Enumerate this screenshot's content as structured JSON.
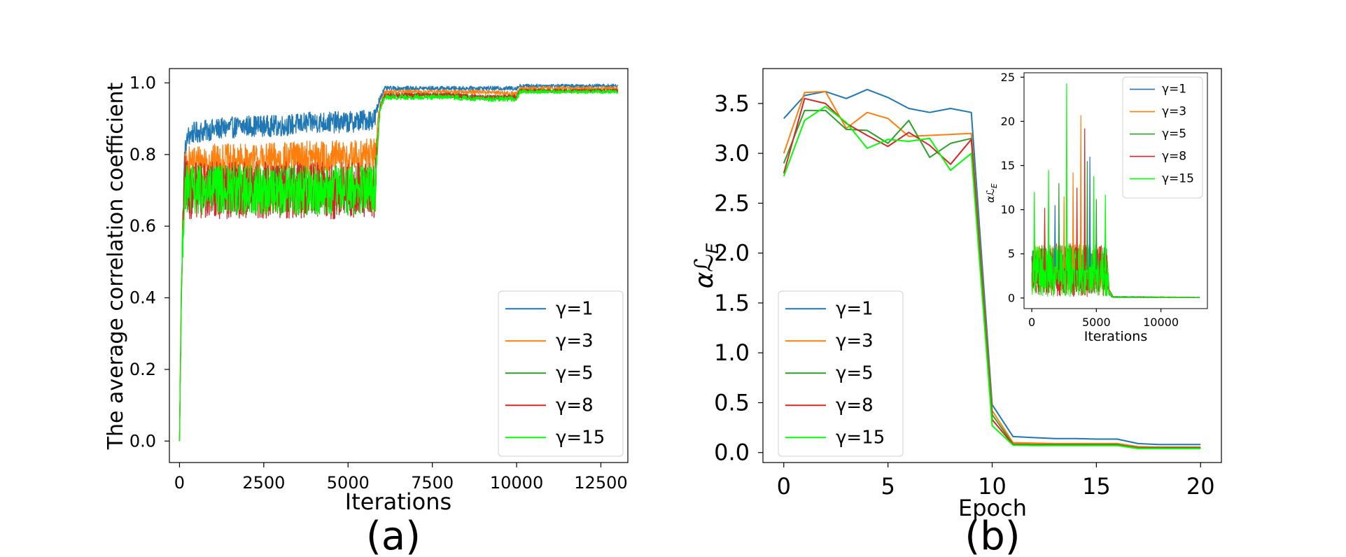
{
  "chart_data": [
    {
      "panel": "a",
      "type": "line",
      "caption": "(a)",
      "xlabel": "Iterations",
      "ylabel": "The average correlation coefficient",
      "xlim": [
        -300,
        13300
      ],
      "ylim": [
        -0.06,
        1.04
      ],
      "xticks": [
        0,
        2500,
        5000,
        7500,
        10000,
        12500
      ],
      "yticks": [
        0.0,
        0.2,
        0.4,
        0.6,
        0.8,
        1.0
      ],
      "ytick_labels": [
        "0.0",
        "0.2",
        "0.4",
        "0.6",
        "0.8",
        "1.0"
      ],
      "legend_position": "lower-right",
      "noise_series": true,
      "series": [
        {
          "name": "γ=1",
          "color": "#1f77b4",
          "x": [
            0,
            60,
            150,
            250,
            400,
            1000,
            2000,
            3000,
            4000,
            5000,
            5800,
            5850,
            5950,
            6100,
            7000,
            8000,
            9000,
            9900,
            10000,
            10100,
            11000,
            12000,
            13000
          ],
          "y": [
            0.0,
            0.45,
            0.8,
            0.85,
            0.86,
            0.87,
            0.88,
            0.88,
            0.89,
            0.89,
            0.9,
            0.92,
            0.96,
            0.985,
            0.985,
            0.985,
            0.985,
            0.985,
            0.985,
            0.992,
            0.992,
            0.992,
            0.992
          ],
          "amp": [
            0,
            0.05,
            0.03,
            0.03,
            0.03,
            0.03,
            0.03,
            0.03,
            0.03,
            0.03,
            0.03,
            0.02,
            0.01,
            0.006,
            0.006,
            0.006,
            0.006,
            0.006,
            0.006,
            0.005,
            0.005,
            0.005,
            0.005
          ]
        },
        {
          "name": "γ=3",
          "color": "#ff7f0e",
          "x": [
            0,
            60,
            150,
            250,
            400,
            1000,
            2000,
            3000,
            4000,
            5000,
            5800,
            5850,
            5950,
            6100,
            7000,
            8000,
            9000,
            9900,
            10000,
            10100,
            11000,
            12000,
            13000
          ],
          "y": [
            0.0,
            0.45,
            0.76,
            0.77,
            0.78,
            0.78,
            0.78,
            0.785,
            0.79,
            0.79,
            0.8,
            0.85,
            0.94,
            0.975,
            0.975,
            0.975,
            0.975,
            0.97,
            0.97,
            0.985,
            0.985,
            0.985,
            0.985
          ],
          "amp": [
            0,
            0.06,
            0.05,
            0.05,
            0.05,
            0.05,
            0.05,
            0.05,
            0.05,
            0.05,
            0.05,
            0.03,
            0.01,
            0.006,
            0.006,
            0.006,
            0.006,
            0.006,
            0.006,
            0.005,
            0.005,
            0.005,
            0.005
          ]
        },
        {
          "name": "γ=5",
          "color": "#2ca02c",
          "x": [
            0,
            60,
            150,
            250,
            400,
            1000,
            2000,
            3000,
            4000,
            5000,
            5800,
            5850,
            5950,
            6100,
            7000,
            8000,
            9000,
            9900,
            10000,
            10100,
            11000,
            12000,
            13000
          ],
          "y": [
            0.0,
            0.45,
            0.72,
            0.71,
            0.7,
            0.7,
            0.7,
            0.7,
            0.7,
            0.7,
            0.7,
            0.8,
            0.93,
            0.965,
            0.965,
            0.965,
            0.96,
            0.96,
            0.96,
            0.978,
            0.978,
            0.978,
            0.978
          ],
          "amp": [
            0,
            0.06,
            0.07,
            0.07,
            0.07,
            0.07,
            0.07,
            0.07,
            0.07,
            0.07,
            0.07,
            0.03,
            0.01,
            0.007,
            0.007,
            0.007,
            0.007,
            0.007,
            0.007,
            0.005,
            0.005,
            0.005,
            0.005
          ]
        },
        {
          "name": "γ=8",
          "color": "#d62728",
          "x": [
            0,
            60,
            150,
            250,
            400,
            1000,
            2000,
            3000,
            4000,
            5000,
            5800,
            5850,
            5950,
            6100,
            7000,
            8000,
            9000,
            9900,
            10000,
            10100,
            11000,
            12000,
            13000
          ],
          "y": [
            0.0,
            0.45,
            0.72,
            0.7,
            0.7,
            0.7,
            0.7,
            0.7,
            0.7,
            0.7,
            0.7,
            0.8,
            0.93,
            0.965,
            0.965,
            0.965,
            0.96,
            0.96,
            0.96,
            0.978,
            0.978,
            0.978,
            0.978
          ],
          "amp": [
            0,
            0.06,
            0.08,
            0.08,
            0.08,
            0.08,
            0.08,
            0.08,
            0.08,
            0.08,
            0.08,
            0.03,
            0.01,
            0.007,
            0.007,
            0.007,
            0.007,
            0.007,
            0.007,
            0.005,
            0.005,
            0.005,
            0.005
          ]
        },
        {
          "name": "γ=15",
          "color": "#00ff00",
          "x": [
            0,
            60,
            150,
            250,
            400,
            1000,
            2000,
            3000,
            4000,
            5000,
            5800,
            5850,
            5950,
            6100,
            7000,
            8000,
            9000,
            9900,
            10000,
            10100,
            11000,
            12000,
            13000
          ],
          "y": [
            0.0,
            0.45,
            0.71,
            0.7,
            0.7,
            0.7,
            0.7,
            0.7,
            0.7,
            0.7,
            0.7,
            0.8,
            0.93,
            0.96,
            0.96,
            0.96,
            0.955,
            0.955,
            0.955,
            0.975,
            0.975,
            0.975,
            0.975
          ],
          "amp": [
            0,
            0.06,
            0.07,
            0.07,
            0.07,
            0.07,
            0.07,
            0.07,
            0.07,
            0.07,
            0.07,
            0.03,
            0.01,
            0.007,
            0.007,
            0.007,
            0.007,
            0.007,
            0.007,
            0.005,
            0.005,
            0.005,
            0.005
          ]
        }
      ]
    },
    {
      "panel": "b",
      "type": "line",
      "caption": "(b)",
      "xlabel": "Epoch",
      "ylabel": "αℒ",
      "ylabel_subscript": "E",
      "xlim": [
        -1,
        21
      ],
      "ylim": [
        -0.1,
        3.85
      ],
      "xticks": [
        0,
        5,
        10,
        15,
        20
      ],
      "yticks": [
        0.0,
        0.5,
        1.0,
        1.5,
        2.0,
        2.5,
        3.0,
        3.5
      ],
      "ytick_labels": [
        "0.0",
        "0.5",
        "1.0",
        "1.5",
        "2.0",
        "2.5",
        "3.0",
        "3.5"
      ],
      "legend_position": "lower-left",
      "series": [
        {
          "name": "γ=1",
          "color": "#1f77b4",
          "x": [
            0,
            1,
            2,
            3,
            4,
            5,
            6,
            7,
            8,
            9,
            10,
            11,
            12,
            13,
            14,
            15,
            16,
            17,
            18,
            19,
            20
          ],
          "y": [
            3.35,
            3.58,
            3.62,
            3.55,
            3.64,
            3.56,
            3.45,
            3.41,
            3.45,
            3.41,
            0.48,
            0.16,
            0.15,
            0.14,
            0.14,
            0.135,
            0.135,
            0.09,
            0.08,
            0.08,
            0.08
          ]
        },
        {
          "name": "γ=3",
          "color": "#ff7f0e",
          "x": [
            0,
            1,
            2,
            3,
            4,
            5,
            6,
            7,
            8,
            9,
            10,
            11,
            12,
            13,
            14,
            15,
            16,
            17,
            18,
            19,
            20
          ],
          "y": [
            3.0,
            3.61,
            3.62,
            3.25,
            3.41,
            3.35,
            3.17,
            3.18,
            3.19,
            3.2,
            0.42,
            0.1,
            0.095,
            0.09,
            0.09,
            0.09,
            0.09,
            0.06,
            0.055,
            0.055,
            0.055
          ]
        },
        {
          "name": "γ=5",
          "color": "#2ca02c",
          "x": [
            0,
            1,
            2,
            3,
            4,
            5,
            6,
            7,
            8,
            9,
            10,
            11,
            12,
            13,
            14,
            15,
            16,
            17,
            18,
            19,
            20
          ],
          "y": [
            2.9,
            3.43,
            3.43,
            3.24,
            3.23,
            3.1,
            3.33,
            2.96,
            3.1,
            3.15,
            0.38,
            0.085,
            0.08,
            0.08,
            0.08,
            0.08,
            0.08,
            0.05,
            0.05,
            0.05,
            0.05
          ]
        },
        {
          "name": "γ=8",
          "color": "#d62728",
          "x": [
            0,
            1,
            2,
            3,
            4,
            5,
            6,
            7,
            8,
            9,
            10,
            11,
            12,
            13,
            14,
            15,
            16,
            17,
            18,
            19,
            20
          ],
          "y": [
            2.8,
            3.55,
            3.5,
            3.3,
            3.18,
            3.07,
            3.21,
            3.08,
            2.89,
            3.14,
            0.33,
            0.08,
            0.075,
            0.075,
            0.075,
            0.075,
            0.075,
            0.045,
            0.045,
            0.045,
            0.045
          ]
        },
        {
          "name": "γ=15",
          "color": "#00ff00",
          "x": [
            0,
            1,
            2,
            3,
            4,
            5,
            6,
            7,
            8,
            9,
            10,
            11,
            12,
            13,
            14,
            15,
            16,
            17,
            18,
            19,
            20
          ],
          "y": [
            2.77,
            3.33,
            3.47,
            3.31,
            3.05,
            3.14,
            3.12,
            3.15,
            2.83,
            3.0,
            0.27,
            0.075,
            0.07,
            0.07,
            0.07,
            0.07,
            0.07,
            0.04,
            0.04,
            0.04,
            0.04
          ]
        }
      ]
    },
    {
      "panel": "b-inset",
      "type": "line",
      "xlabel": "Iterations",
      "ylabel": "αℒ",
      "ylabel_subscript": "E",
      "xlim": [
        -600,
        13600
      ],
      "ylim": [
        -1.2,
        25.5
      ],
      "xticks": [
        0,
        5000,
        10000
      ],
      "yticks": [
        0,
        5,
        10,
        15,
        20,
        25
      ],
      "ytick_labels": [
        "0",
        "5",
        "10",
        "15",
        "20",
        "25"
      ],
      "legend_position": "upper-right",
      "noise_series": true,
      "series": [
        {
          "name": "γ=1",
          "color": "#1f77b4",
          "x": [
            0,
            200,
            5800,
            6000,
            6300,
            13000
          ],
          "y": [
            3.4,
            3.6,
            3.5,
            0.8,
            0.15,
            0.08
          ],
          "amp": [
            1.8,
            2.0,
            2.0,
            0.4,
            0.05,
            0.03
          ]
        },
        {
          "name": "γ=3",
          "color": "#ff7f0e",
          "x": [
            0,
            200,
            5800,
            6000,
            6300,
            13000
          ],
          "y": [
            3.0,
            3.4,
            3.3,
            0.7,
            0.1,
            0.06
          ],
          "amp": [
            2.2,
            2.6,
            2.6,
            0.4,
            0.05,
            0.03
          ]
        },
        {
          "name": "γ=5",
          "color": "#2ca02c",
          "x": [
            0,
            200,
            5800,
            6000,
            6300,
            13000
          ],
          "y": [
            2.9,
            3.2,
            3.2,
            0.6,
            0.08,
            0.05
          ],
          "amp": [
            2.4,
            2.8,
            2.8,
            0.4,
            0.05,
            0.03
          ]
        },
        {
          "name": "γ=8",
          "color": "#d62728",
          "x": [
            0,
            200,
            5800,
            6000,
            6300,
            13000
          ],
          "y": [
            2.8,
            3.2,
            3.1,
            0.6,
            0.08,
            0.05
          ],
          "amp": [
            2.6,
            3.0,
            3.0,
            0.4,
            0.05,
            0.03
          ]
        },
        {
          "name": "γ=15",
          "color": "#00ff00",
          "x": [
            0,
            200,
            5800,
            6000,
            6300,
            13000
          ],
          "y": [
            2.8,
            3.1,
            3.1,
            0.6,
            0.07,
            0.04
          ],
          "amp": [
            2.6,
            3.0,
            3.0,
            0.4,
            0.05,
            0.03
          ]
        }
      ],
      "spikes": [
        {
          "series": "γ=15",
          "x": 2700,
          "y": 24.3
        },
        {
          "series": "γ=3",
          "x": 3800,
          "y": 20.7
        },
        {
          "series": "γ=8",
          "x": 4100,
          "y": 19.2
        },
        {
          "series": "γ=1",
          "x": 4500,
          "y": 16.0
        },
        {
          "series": "γ=5",
          "x": 4300,
          "y": 15.5
        },
        {
          "series": "γ=15",
          "x": 1300,
          "y": 14.5
        },
        {
          "series": "γ=3",
          "x": 3200,
          "y": 14.2
        },
        {
          "series": "γ=5",
          "x": 2100,
          "y": 13.0
        },
        {
          "series": "γ=15",
          "x": 200,
          "y": 12.0
        },
        {
          "series": "γ=8",
          "x": 3500,
          "y": 12.5
        },
        {
          "series": "γ=15",
          "x": 5700,
          "y": 11.7
        },
        {
          "series": "γ=3",
          "x": 2500,
          "y": 11.5
        },
        {
          "series": "γ=5",
          "x": 5000,
          "y": 11.2
        },
        {
          "series": "γ=15",
          "x": 4800,
          "y": 13.8
        },
        {
          "series": "γ=1",
          "x": 1800,
          "y": 10.5
        },
        {
          "series": "γ=8",
          "x": 1000,
          "y": 10.2
        }
      ]
    }
  ]
}
